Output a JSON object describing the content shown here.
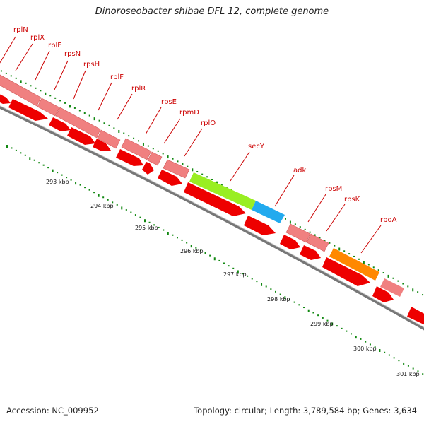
{
  "title": "Dinoroseobacter shibae DFL 12, complete genome",
  "footer": {
    "accession": "Accession: NC_009952",
    "summary": "Topology: circular; Length: 3,789,584 bp; Genes: 3,634"
  },
  "colors": {
    "gene_label": "#cc0000",
    "cds_light": "#f08080",
    "cds_dark": "#ee0000",
    "secY": "#99ee22",
    "adk": "#22aaee",
    "rpoA": "#ff8800",
    "backbone": "#888888",
    "tick": "#118811"
  },
  "gene_labels": [
    {
      "id": "rplN",
      "text": "rplN"
    },
    {
      "id": "rplX",
      "text": "rplX"
    },
    {
      "id": "rplE",
      "text": "rplE"
    },
    {
      "id": "rpsN",
      "text": "rpsN"
    },
    {
      "id": "rpsH",
      "text": "rpsH"
    },
    {
      "id": "rplF",
      "text": "rplF"
    },
    {
      "id": "rplR",
      "text": "rplR"
    },
    {
      "id": "rpsE",
      "text": "rpsE"
    },
    {
      "id": "rpmD",
      "text": "rpmD"
    },
    {
      "id": "rplO",
      "text": "rplO"
    },
    {
      "id": "secY",
      "text": "secY"
    },
    {
      "id": "adk",
      "text": "adk"
    },
    {
      "id": "rpsM",
      "text": "rpsM"
    },
    {
      "id": "rpsK",
      "text": "rpsK"
    },
    {
      "id": "rpoA",
      "text": "rpoA"
    }
  ],
  "ticks": [
    {
      "id": "t293",
      "text": "293 kbp"
    },
    {
      "id": "t294",
      "text": "294 kbp"
    },
    {
      "id": "t295",
      "text": "295 kbp"
    },
    {
      "id": "t296",
      "text": "296 kbp"
    },
    {
      "id": "t297",
      "text": "297 kbp"
    },
    {
      "id": "t298",
      "text": "298 kbp"
    },
    {
      "id": "t299",
      "text": "299 kbp"
    },
    {
      "id": "t300",
      "text": "300 kbp"
    },
    {
      "id": "t301",
      "text": "301 kbp"
    }
  ]
}
